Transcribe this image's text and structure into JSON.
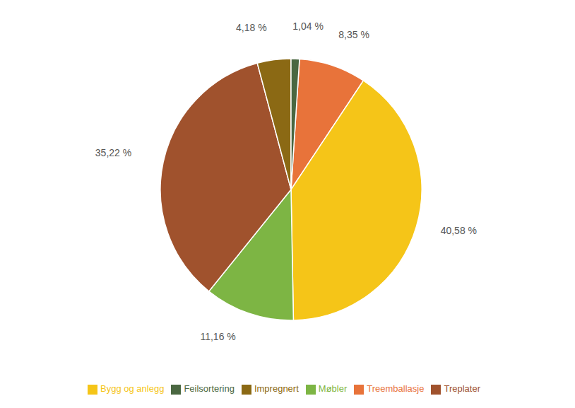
{
  "chart_data": {
    "type": "pie",
    "categories": [
      "Treemballasje",
      "Bygg og anlegg",
      "Møbler",
      "Treplater",
      "Impregnert",
      "Feilsortering"
    ],
    "values": [
      8.35,
      40.58,
      11.16,
      35.22,
      4.18,
      1.04
    ],
    "value_labels": [
      "8,35 %",
      "40,58 %",
      "11,16 %",
      "35,22 %",
      "4,18 %",
      "1,04 %"
    ],
    "colors": [
      "#E8733A",
      "#F5C518",
      "#7DB544",
      "#A0522D",
      "#8B6914",
      "#4A6741"
    ],
    "data_labels": true,
    "legend": "bottom"
  }
}
